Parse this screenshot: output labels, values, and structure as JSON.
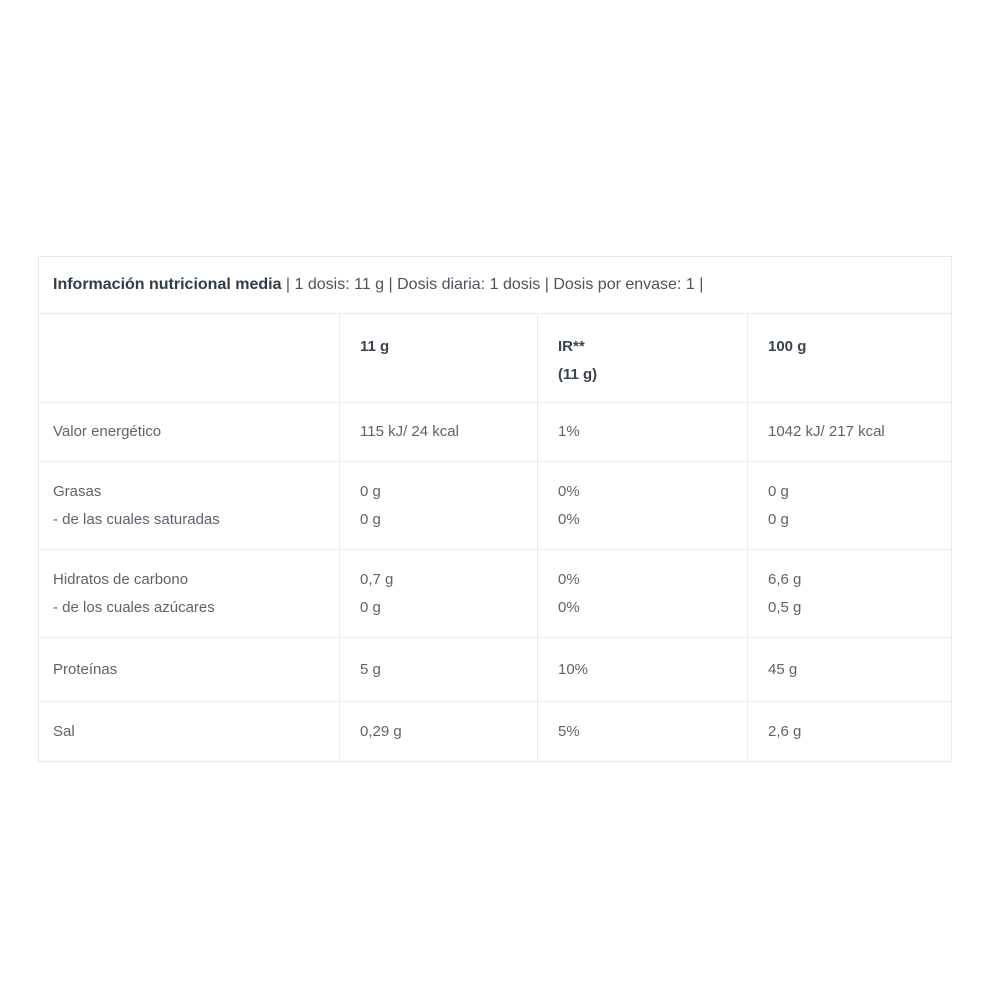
{
  "page": {
    "background": "#ffffff"
  },
  "table": {
    "title_bold": "Información nutricional media",
    "title_rest": " | 1 dosis: 11 g | Dosis diaria: 1 dosis | Dosis por envase: 1 |",
    "header": {
      "col_blank": "",
      "col_serving": "11 g",
      "col_ir_line1": "IR**",
      "col_ir_line2": "(11 g)",
      "col_per100": "100 g"
    },
    "rows": [
      {
        "cells": [
          [
            "Valor energético"
          ],
          [
            "115 kJ/ 24 kcal"
          ],
          [
            "1%"
          ],
          [
            "1042 kJ/ 217 kcal"
          ]
        ]
      },
      {
        "cells": [
          [
            "Grasas",
            "- de las cuales saturadas"
          ],
          [
            "0 g",
            "0 g"
          ],
          [
            "0%",
            "0%"
          ],
          [
            "0 g",
            "0 g"
          ]
        ]
      },
      {
        "cells": [
          [
            "Hidratos de carbono",
            "- de los cuales azúcares"
          ],
          [
            "0,7 g",
            "0 g"
          ],
          [
            "0%",
            "0%"
          ],
          [
            "6,6 g",
            "0,5 g"
          ]
        ]
      },
      {
        "cells": [
          [
            "Proteínas"
          ],
          [
            "5 g"
          ],
          [
            "10%"
          ],
          [
            "45 g"
          ]
        ]
      },
      {
        "cells": [
          [
            "Sal"
          ],
          [
            "0,29 g"
          ],
          [
            "5%"
          ],
          [
            "2,6 g"
          ]
        ]
      }
    ],
    "colors": {
      "border": "#e7e9eb",
      "title_text": "#323c46",
      "header_text": "#3a444e",
      "body_text": "#5b646d",
      "background": "#ffffff"
    }
  }
}
